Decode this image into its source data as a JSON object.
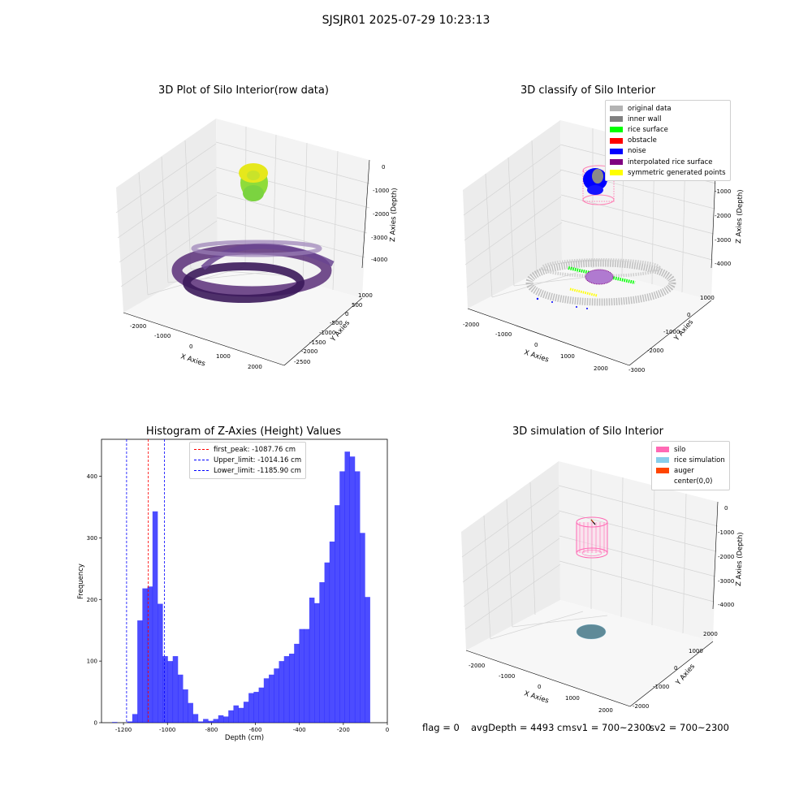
{
  "page": {
    "suptitle": "SJSJR01 2025-07-29 10:23:13"
  },
  "panels": {
    "raw": {
      "title": "3D Plot of Silo Interior(row data)",
      "x_label": "X Axies",
      "y_label": "Y Axies",
      "z_label": "Z Axies (Depth)",
      "x_ticks": [
        "-2000",
        "-1000",
        "0",
        "1000",
        "2000"
      ],
      "y_ticks": [
        "1000",
        "500",
        "0",
        "-500",
        "-1000",
        "-1500",
        "-2000",
        "-2500"
      ],
      "z_ticks": [
        "0",
        "-1000",
        "-2000",
        "-3000",
        "-4000"
      ]
    },
    "classify": {
      "title": "3D classify of Silo Interior",
      "x_label": "X Axies",
      "y_label": "Y Axies",
      "z_label": "Z Axies (Depth)",
      "x_ticks": [
        "-2000",
        "-1000",
        "0",
        "1000",
        "2000"
      ],
      "y_ticks": [
        "1000",
        "0",
        "-1000",
        "-2000",
        "-3000"
      ],
      "z_ticks": [
        "0",
        "-1000",
        "-2000",
        "-3000",
        "-4000"
      ],
      "legend": [
        {
          "label": "original data",
          "color": "#b3b3b3"
        },
        {
          "label": "inner wall",
          "color": "#808080"
        },
        {
          "label": "rice surface",
          "color": "#00ff00"
        },
        {
          "label": "obstacle",
          "color": "#ff0000"
        },
        {
          "label": "noise",
          "color": "#0000ff"
        },
        {
          "label": "interpolated rice surface",
          "color": "#800080"
        },
        {
          "label": "symmetric generated points",
          "color": "#ffff00"
        }
      ]
    },
    "histogram": {
      "title": "Histogram of Z-Axies (Height) Values",
      "x_label": "Depth (cm)",
      "y_label": "Frequency",
      "x_ticks": [
        "-1200",
        "-1000",
        "-800",
        "-600",
        "-400",
        "-200",
        "0"
      ],
      "y_ticks": [
        "0",
        "100",
        "200",
        "300",
        "400"
      ],
      "legend": [
        {
          "label": "first_peak: -1087.76 cm",
          "color": "#ff0000"
        },
        {
          "label": "Upper_limit: -1014.16 cm",
          "color": "#0000ff"
        },
        {
          "label": "Lower_limit: -1185.90 cm",
          "color": "#0000ff"
        }
      ]
    },
    "simulation": {
      "title": "3D simulation of Silo Interior",
      "x_label": "X Axies",
      "y_label": "Y Axies",
      "z_label": "Z Axies (Depth)",
      "x_ticks": [
        "-2000",
        "-1000",
        "0",
        "1000",
        "2000"
      ],
      "y_ticks": [
        "2000",
        "1000",
        "0",
        "-1000",
        "-2000"
      ],
      "z_ticks": [
        "0",
        "-1000",
        "-2000",
        "-3000",
        "-4000"
      ],
      "legend": [
        {
          "label": "silo",
          "color": "#ff69b4"
        },
        {
          "label": "rice simulation",
          "color": "#87ceeb"
        },
        {
          "label": "auger",
          "color": "#ff4500"
        },
        {
          "label": "center(0,0)",
          "color": "#ffffff"
        }
      ]
    }
  },
  "status": {
    "flag": "flag = 0",
    "avg_depth": "avgDepth = 4493 cm",
    "sv1": "sv1 = 700~2300",
    "sv2": "sv2 = 700~2300"
  },
  "chart_data": [
    {
      "type": "bar",
      "title": "Histogram of Z-Axies (Height) Values",
      "xlabel": "Depth (cm)",
      "ylabel": "Frequency",
      "xlim": [
        -1300,
        0
      ],
      "ylim": [
        0,
        460
      ],
      "bar_color": "#0000ff",
      "bin_start": -1275,
      "bin_width": 23,
      "values": [
        0,
        1,
        0,
        0,
        2,
        14,
        166,
        218,
        221,
        343,
        193,
        108,
        100,
        108,
        78,
        54,
        32,
        14,
        2,
        6,
        3,
        6,
        12,
        10,
        20,
        28,
        24,
        34,
        48,
        50,
        57,
        72,
        78,
        88,
        100,
        108,
        112,
        128,
        152,
        152,
        203,
        194,
        228,
        260,
        294,
        353,
        408,
        440,
        432,
        408,
        308,
        204
      ],
      "markers": [
        {
          "label": "first_peak: -1087.76 cm",
          "x": -1087.76,
          "color": "#ff0000"
        },
        {
          "label": "Upper_limit: -1014.16 cm",
          "x": -1014.16,
          "color": "#0000ff"
        },
        {
          "label": "Lower_limit: -1185.90 cm",
          "x": -1185.9,
          "color": "#0000ff"
        }
      ],
      "legend_position": "top-center"
    }
  ]
}
